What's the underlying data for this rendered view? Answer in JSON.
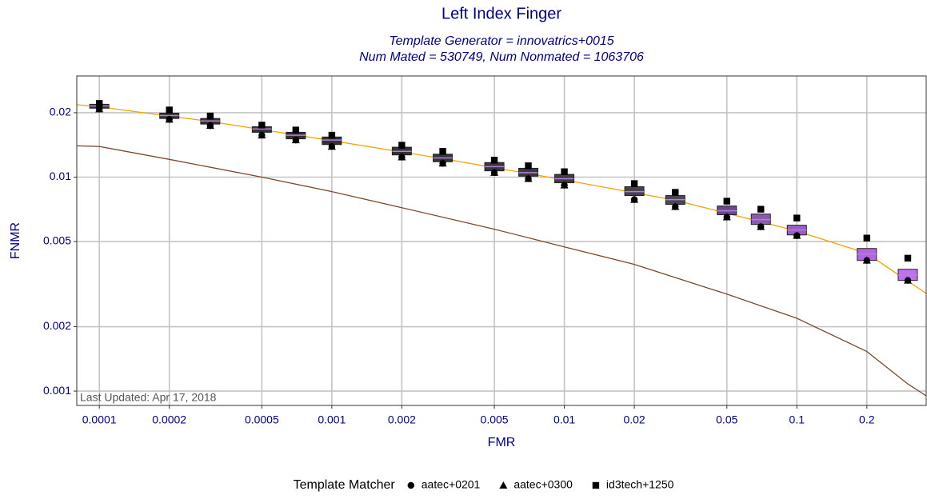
{
  "chart_data": {
    "type": "box",
    "title": "Left Index Finger",
    "subtitle": [
      "Template Generator = innovatrics+0015",
      "Num Mated = 530749, Num Nonmated = 1063706"
    ],
    "x_label": "FMR",
    "y_label": "FNMR",
    "annotation": "Last Updated: Apr 17, 2018",
    "log_x": true,
    "log_y": true,
    "grid": true,
    "xlim": [
      8e-05,
      0.36
    ],
    "ylim": [
      0.000857,
      0.0297
    ],
    "xticks": [
      0.0001,
      0.0002,
      0.0005,
      0.001,
      0.002,
      0.005,
      0.01,
      0.02,
      0.05,
      0.1,
      0.2
    ],
    "yticks": [
      0.001,
      0.002,
      0.005,
      0.01,
      0.02
    ],
    "legend_title": "Template Matcher",
    "legend": "bottom",
    "x": [
      0.0001,
      0.0002,
      0.0003,
      0.0005,
      0.0007,
      0.001,
      0.002,
      0.003,
      0.005,
      0.007,
      0.01,
      0.02,
      0.03,
      0.05,
      0.07,
      0.1,
      0.2,
      0.3
    ],
    "boxes": [
      {
        "lower": 0.021,
        "middle": 0.0215,
        "upper": 0.0219,
        "fill": "#333333"
      },
      {
        "lower": 0.0188,
        "middle": 0.0194,
        "upper": 0.0199,
        "fill": "#333333"
      },
      {
        "lower": 0.0177,
        "middle": 0.0183,
        "upper": 0.0188,
        "fill": "#333333"
      },
      {
        "lower": 0.0162,
        "middle": 0.0168,
        "upper": 0.0172,
        "fill": "#333333"
      },
      {
        "lower": 0.0151,
        "middle": 0.0157,
        "upper": 0.0162,
        "fill": "#333333"
      },
      {
        "lower": 0.0142,
        "middle": 0.0149,
        "upper": 0.0154,
        "fill": "#333333"
      },
      {
        "lower": 0.0127,
        "middle": 0.0132,
        "upper": 0.0138,
        "fill": "#333333"
      },
      {
        "lower": 0.0118,
        "middle": 0.0123,
        "upper": 0.0128,
        "fill": "#353535"
      },
      {
        "lower": 0.0107,
        "middle": 0.0112,
        "upper": 0.0117,
        "fill": "#383838"
      },
      {
        "lower": 0.0101,
        "middle": 0.0105,
        "upper": 0.011,
        "fill": "#3b3b3b"
      },
      {
        "lower": 0.00941,
        "middle": 0.00983,
        "upper": 0.0103,
        "fill": "#3e3e3e"
      },
      {
        "lower": 0.0082,
        "middle": 0.00856,
        "upper": 0.00902,
        "fill": "#46404e"
      },
      {
        "lower": 0.00746,
        "middle": 0.00785,
        "upper": 0.0082,
        "fill": "#4e4458"
      },
      {
        "lower": 0.00667,
        "middle": 0.00696,
        "upper": 0.00733,
        "fill": "#6a4a8a"
      },
      {
        "lower": 0.00601,
        "middle": 0.00633,
        "upper": 0.00672,
        "fill": "#8a5aad"
      },
      {
        "lower": 0.00537,
        "middle": 0.00566,
        "upper": 0.00596,
        "fill": "#9a5fc0"
      },
      {
        "lower": 0.00408,
        "middle": 0.00437,
        "upper": 0.00464,
        "fill": "#b266e0"
      },
      {
        "lower": 0.00329,
        "middle": 0.00349,
        "upper": 0.00371,
        "fill": "#c070f0"
      }
    ],
    "series": [
      {
        "name": "aatec+0201",
        "marker": "circle",
        "color": "#000000",
        "values": [
          0.0208,
          0.0186,
          0.0174,
          0.0157,
          0.0149,
          0.0139,
          0.0124,
          0.0116,
          0.0105,
          0.00983,
          0.00917,
          0.00785,
          0.00727,
          0.0065,
          0.00586,
          0.00533,
          0.00408,
          0.00329
        ]
      },
      {
        "name": "aatec+0300",
        "marker": "triangle",
        "color": "#000000",
        "values": [
          0.0208,
          0.0186,
          0.0174,
          0.0157,
          0.0149,
          0.0139,
          0.0124,
          0.0116,
          0.0105,
          0.00983,
          0.00917,
          0.00785,
          0.00727,
          0.0065,
          0.00586,
          0.00533,
          0.00408,
          0.00329
        ]
      },
      {
        "name": "id3tech+1250",
        "marker": "square",
        "color": "#000000",
        "values": [
          0.0221,
          0.0206,
          0.0193,
          0.0175,
          0.0166,
          0.0157,
          0.0141,
          0.0132,
          0.012,
          0.0113,
          0.0106,
          0.00933,
          0.00849,
          0.00772,
          0.00708,
          0.00644,
          0.00519,
          0.00418
        ]
      }
    ],
    "lines": [
      {
        "color": "#f5a300",
        "x": [
          8e-05,
          0.0001,
          0.0003,
          0.001,
          0.003,
          0.01,
          0.03,
          0.1,
          0.2,
          0.36
        ],
        "values": [
          0.0218,
          0.0213,
          0.0182,
          0.0148,
          0.0122,
          0.0097,
          0.0078,
          0.0056,
          0.0044,
          0.00286
        ]
      },
      {
        "color": "#7b4a2e",
        "x": [
          8e-05,
          0.0001,
          0.0002,
          0.0005,
          0.001,
          0.002,
          0.005,
          0.01,
          0.02,
          0.05,
          0.1,
          0.2,
          0.3,
          0.36
        ],
        "values": [
          0.014,
          0.0139,
          0.0121,
          0.01,
          0.00856,
          0.0072,
          0.00571,
          0.00472,
          0.00391,
          0.00284,
          0.00219,
          0.00153,
          0.00108,
          0.00095
        ]
      }
    ]
  }
}
